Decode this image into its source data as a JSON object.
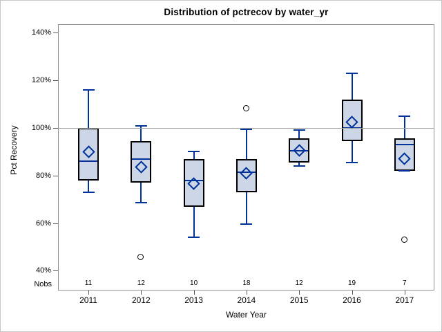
{
  "title": "Distribution of pctrecov by water_yr",
  "chart_data": {
    "type": "boxplot",
    "title": "Distribution of pctrecov by water_yr",
    "xlabel": "Water Year",
    "ylabel": "Pct Recovery",
    "nobs_label": "Nobs",
    "ytick_values": [
      40,
      60,
      80,
      100,
      120,
      140
    ],
    "ytick_labels": [
      "40%",
      "60%",
      "80%",
      "100%",
      "120%",
      "140%"
    ],
    "ylim": [
      40,
      140
    ],
    "reference_line": 100,
    "grid": false,
    "legend": "none",
    "categories": [
      "2011",
      "2012",
      "2013",
      "2014",
      "2015",
      "2016",
      "2017"
    ],
    "series": [
      {
        "year": "2011",
        "nobs": 11,
        "min": 73,
        "q1": 78,
        "median": 86,
        "q3": 100,
        "max": 116,
        "mean": 90,
        "outliers": []
      },
      {
        "year": "2012",
        "nobs": 12,
        "min": 68.5,
        "q1": 77,
        "median": 87,
        "q3": 94.5,
        "max": 101,
        "mean": 83.5,
        "outliers": [
          45.5
        ]
      },
      {
        "year": "2013",
        "nobs": 10,
        "min": 54,
        "q1": 67,
        "median": 78,
        "q3": 87,
        "max": 90,
        "mean": 76.5,
        "outliers": []
      },
      {
        "year": "2014",
        "nobs": 18,
        "min": 59.5,
        "q1": 73,
        "median": 81.5,
        "q3": 87,
        "max": 99.5,
        "mean": 81,
        "outliers": [
          108
        ]
      },
      {
        "year": "2015",
        "nobs": 12,
        "min": 84,
        "q1": 85.5,
        "median": 90.5,
        "q3": 95.5,
        "max": 99,
        "mean": 90.5,
        "outliers": []
      },
      {
        "year": "2016",
        "nobs": 19,
        "min": 85.5,
        "q1": 94.5,
        "median": 100,
        "q3": 112,
        "max": 123,
        "mean": 102.5,
        "outliers": []
      },
      {
        "year": "2017",
        "nobs": 7,
        "min": 82,
        "q1": 82,
        "median": 93,
        "q3": 95.5,
        "max": 105,
        "mean": 87,
        "outliers": [
          53
        ]
      }
    ],
    "colors": {
      "box_fill": "#ccd6e6",
      "box_border": "#000000",
      "whisker_blue": "#003399",
      "frame_gray": "#8f8f8f",
      "reference_gray": "#a3a3a3",
      "outlier_black": "#000000",
      "text": "#000000"
    }
  }
}
